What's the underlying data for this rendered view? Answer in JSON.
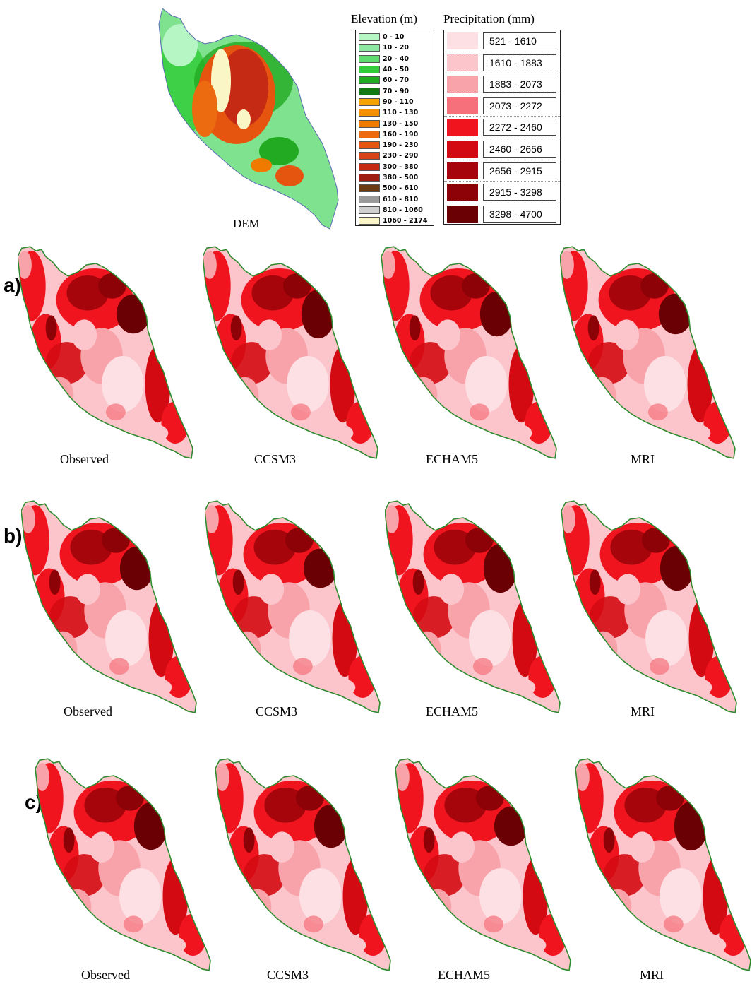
{
  "dem": {
    "label": "DEM"
  },
  "elevation_legend": {
    "title": "Elevation (m)",
    "classes": [
      {
        "label": "0 - 10",
        "color": "#b6f5c4"
      },
      {
        "label": "10 - 20",
        "color": "#8ee8a2"
      },
      {
        "label": "20 - 40",
        "color": "#5fdc6f"
      },
      {
        "label": "40 - 50",
        "color": "#33cc3a"
      },
      {
        "label": "60 - 70",
        "color": "#22aa22"
      },
      {
        "label": "70 - 90",
        "color": "#137a13"
      },
      {
        "label": "90 - 110",
        "color": "#f6a200"
      },
      {
        "label": "110 - 130",
        "color": "#f59000"
      },
      {
        "label": "130 - 150",
        "color": "#f07a00"
      },
      {
        "label": "160 - 190",
        "color": "#ec6a10"
      },
      {
        "label": "190 - 230",
        "color": "#e65510"
      },
      {
        "label": "230 - 290",
        "color": "#d84418"
      },
      {
        "label": "300 - 380",
        "color": "#c42a14"
      },
      {
        "label": "380 - 500",
        "color": "#9e1c10"
      },
      {
        "label": "500 - 610",
        "color": "#6b3a10"
      },
      {
        "label": "610 - 810",
        "color": "#9a9a9a"
      },
      {
        "label": "810 - 1060",
        "color": "#cfcfcf"
      },
      {
        "label": "1060 - 2174",
        "color": "#fbf6c6"
      }
    ]
  },
  "precipitation_legend": {
    "title": "Precipitation (mm)",
    "classes": [
      {
        "label": "521 - 1610",
        "color": "#fde0e3"
      },
      {
        "label": "1610 - 1883",
        "color": "#fbc5cb"
      },
      {
        "label": "1883 - 2073",
        "color": "#f8a3aa"
      },
      {
        "label": "2073 - 2272",
        "color": "#f5707a"
      },
      {
        "label": "2272 - 2460",
        "color": "#f0141e"
      },
      {
        "label": "2460 - 2656",
        "color": "#d40a12"
      },
      {
        "label": "2656 - 2915",
        "color": "#a5050b"
      },
      {
        "label": "2915 - 3298",
        "color": "#8c0207"
      },
      {
        "label": "3298 - 4700",
        "color": "#6a0004"
      }
    ]
  },
  "rows": [
    {
      "label": "a)",
      "panels": [
        "Observed",
        "CCSM3",
        "ECHAM5",
        "MRI"
      ]
    },
    {
      "label": "b)",
      "panels": [
        "Observed",
        "CCSM3",
        "ECHAM5",
        "MRI"
      ]
    },
    {
      "label": "c)",
      "panels": [
        "Observed",
        "CCSM3",
        "ECHAM5",
        "MRI"
      ]
    }
  ]
}
